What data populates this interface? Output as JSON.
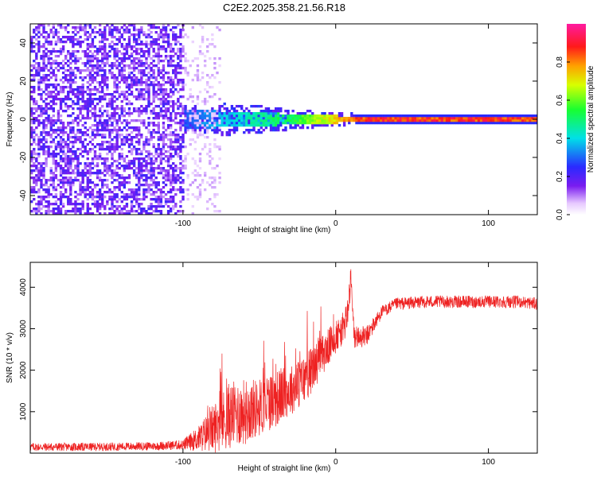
{
  "title": "C2E2.2025.358.21.56.R18",
  "colors": {
    "snr_line": "#ee2222",
    "bg": "#ffffff",
    "axis": "#000000"
  },
  "chart_data": [
    {
      "type": "heatmap",
      "xlabel": "Height of straight line (km)",
      "ylabel": "Frequency (Hz)",
      "xlim": [
        -200,
        132
      ],
      "ylim": [
        -50,
        50
      ],
      "x_ticks": [
        -100,
        0,
        100
      ],
      "y_ticks": [
        -40,
        -20,
        0,
        20,
        40
      ],
      "colorbar": {
        "label": "Normalized spectral amplitude",
        "range": [
          0.0,
          1.0
        ],
        "ticks": [
          "0.0",
          "0.2",
          "0.4",
          "0.6",
          "0.8"
        ],
        "tick_values": [
          0.0,
          0.2,
          0.4,
          0.6,
          0.8
        ]
      },
      "features": [
        {
          "name": "noise-region",
          "x_range": [
            -200,
            -100
          ],
          "freq_range": [
            -50,
            50
          ],
          "amplitude": 0.15
        },
        {
          "name": "fading-noise",
          "x_range": [
            -100,
            -75
          ],
          "freq_range": [
            -50,
            50
          ],
          "amplitude": 0.05
        },
        {
          "name": "signal-onset",
          "x_range": [
            -120,
            -100
          ],
          "freq_range": [
            -8,
            8
          ],
          "amplitude": 0.2
        },
        {
          "name": "broad-signal",
          "x_range": [
            -100,
            -30
          ],
          "freq_range": [
            -5,
            5
          ],
          "amplitude": 0.4
        },
        {
          "name": "narrowing-signal",
          "x_range": [
            -30,
            12
          ],
          "freq_range": [
            -2,
            2
          ],
          "amplitude": 0.7
        },
        {
          "name": "steady-carrier",
          "x_range": [
            12,
            132
          ],
          "freq_range": [
            -1.5,
            1.5
          ],
          "amplitude": 0.95
        }
      ]
    },
    {
      "type": "line",
      "xlabel": "Height of straight line (km)",
      "ylabel": "SNR (10 * v/v)",
      "xlim": [
        -200,
        132
      ],
      "ylim": [
        0,
        4600
      ],
      "x_ticks": [
        -100,
        0,
        100
      ],
      "y_ticks": [
        1000,
        2000,
        3000,
        4000
      ],
      "series": [
        {
          "name": "SNR",
          "x": [
            -200,
            -160,
            -120,
            -100,
            -90,
            -80,
            -70,
            -60,
            -50,
            -40,
            -30,
            -20,
            -10,
            0,
            5,
            8,
            10,
            12,
            20,
            25,
            30,
            40,
            60,
            80,
            100,
            120,
            132
          ],
          "y": [
            150,
            150,
            170,
            200,
            350,
            600,
            900,
            1000,
            1100,
            1300,
            1500,
            1800,
            2300,
            2800,
            3000,
            3400,
            4200,
            2800,
            2800,
            3100,
            3400,
            3600,
            3650,
            3650,
            3650,
            3650,
            3600
          ],
          "spread": [
            100,
            100,
            100,
            120,
            300,
            600,
            800,
            800,
            700,
            700,
            600,
            600,
            500,
            400,
            400,
            400,
            400,
            300,
            250,
            200,
            150,
            150,
            150,
            150,
            150,
            150,
            150
          ]
        }
      ]
    }
  ]
}
